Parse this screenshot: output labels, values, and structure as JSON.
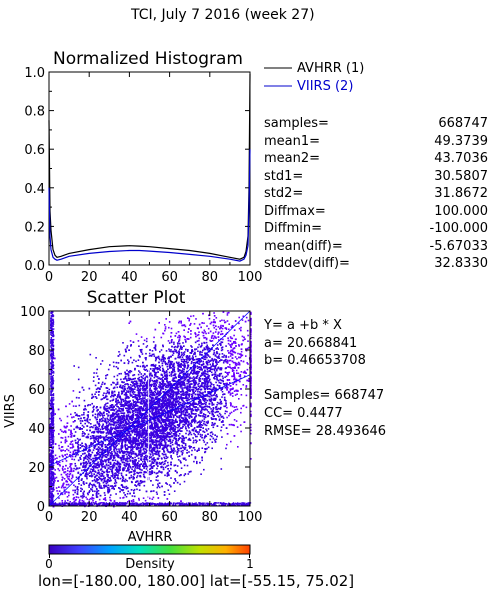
{
  "page_title": "TCI,  July 7 2016 (week 27)",
  "chart_data": [
    {
      "type": "line",
      "title": "Normalized Histogram",
      "xlim": [
        0,
        100
      ],
      "ylim": [
        0,
        1.0
      ],
      "xticks": [
        "0",
        "20",
        "40",
        "60",
        "80",
        "100"
      ],
      "yticks": [
        "0.0",
        "0.2",
        "0.4",
        "0.6",
        "0.8",
        "1.0"
      ],
      "grid": false,
      "legend_position": "right",
      "series": [
        {
          "name": "AVHRR (1)",
          "color": "#000000",
          "x": [
            0,
            0.5,
            1,
            2,
            3,
            4,
            6,
            10,
            20,
            30,
            40,
            45,
            50,
            60,
            70,
            80,
            90,
            95,
            97,
            98,
            99,
            99.5,
            100
          ],
          "y": [
            0.75,
            0.28,
            0.18,
            0.08,
            0.05,
            0.04,
            0.045,
            0.06,
            0.08,
            0.095,
            0.1,
            0.098,
            0.095,
            0.085,
            0.075,
            0.06,
            0.04,
            0.03,
            0.04,
            0.07,
            0.15,
            0.4,
            0.99
          ]
        },
        {
          "name": "VIIRS (2)",
          "color": "#0000cc",
          "x": [
            0,
            0.5,
            1,
            2,
            3,
            4,
            6,
            10,
            20,
            30,
            40,
            45,
            50,
            60,
            70,
            80,
            90,
            95,
            97,
            98,
            99,
            99.5,
            100
          ],
          "y": [
            0.4,
            0.15,
            0.08,
            0.04,
            0.03,
            0.025,
            0.03,
            0.045,
            0.06,
            0.07,
            0.075,
            0.075,
            0.072,
            0.065,
            0.055,
            0.045,
            0.03,
            0.02,
            0.03,
            0.05,
            0.1,
            0.3,
            0.6
          ]
        }
      ]
    },
    {
      "type": "scatter",
      "title": "Scatter Plot",
      "xlabel": "AVHRR",
      "ylabel": "VIIRS",
      "xlim": [
        0,
        100
      ],
      "ylim": [
        0,
        100
      ],
      "xticks": [
        "0",
        "20",
        "40",
        "60",
        "80",
        "100"
      ],
      "yticks": [
        "0",
        "20",
        "40",
        "60",
        "80",
        "100"
      ],
      "fit": {
        "a": 20.668841,
        "b": 0.46653708
      },
      "one_to_one_line": true,
      "colorbar": {
        "label": "Density",
        "min_label": "0",
        "max_label": "1"
      }
    }
  ],
  "stats": {
    "rows": [
      {
        "label": "samples=",
        "value": "668747"
      },
      {
        "label": "mean1=",
        "value": "49.3739"
      },
      {
        "label": "mean2=",
        "value": "43.7036"
      },
      {
        "label": "std1=",
        "value": "30.5807"
      },
      {
        "label": "std2=",
        "value": "31.8672"
      },
      {
        "label": "Diffmax=",
        "value": "100.000"
      },
      {
        "label": "Diffmin=",
        "value": "-100.000"
      },
      {
        "label": "mean(diff)=",
        "value": "-5.67033"
      },
      {
        "label": "stddev(diff)=",
        "value": "32.8330"
      }
    ]
  },
  "regression": {
    "equation": "Y= a +b * X",
    "a_line": "a= 20.668841",
    "b_line": "b= 0.46653708",
    "samples_line": "Samples= 668747",
    "cc_line": "CC=  0.4477",
    "rmse_line": "RMSE= 28.493646"
  },
  "footer": "lon=[-180.00, 180.00] lat=[-55.15, 75.02]",
  "colors": {
    "avhrr_line": "#000000",
    "viirs_line": "#0000cc",
    "scatter_main": "#3a00e0",
    "scatter_sparse": "#6a00ff",
    "fit_line": "#0000ff"
  }
}
